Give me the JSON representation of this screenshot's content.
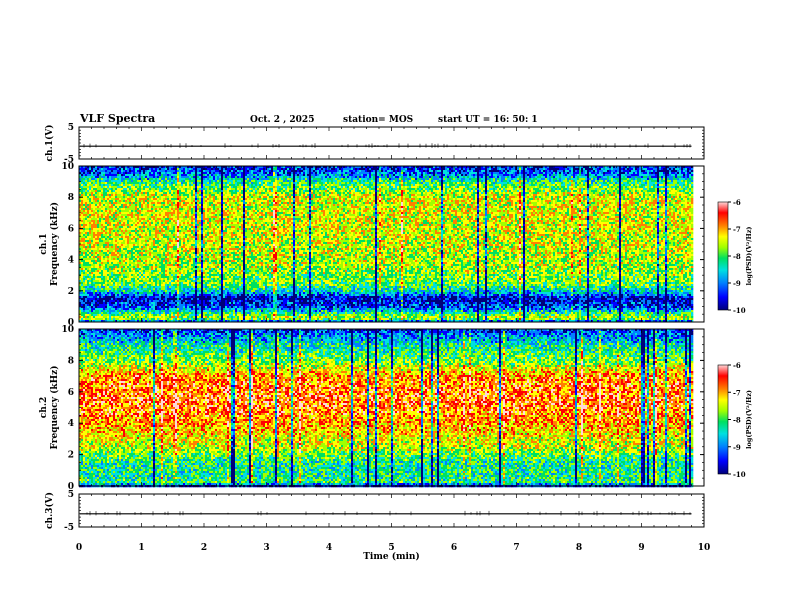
{
  "header": {
    "title": "VLF Spectra",
    "date": "Oct. 2  , 2025",
    "station": "station= MOS",
    "start": "start  UT =   16: 50: 1"
  },
  "colors": {
    "colormap": [
      "#00007a",
      "#0000ff",
      "#0080ff",
      "#00e0e0",
      "#00e060",
      "#a0ff00",
      "#ffff00",
      "#ff8000",
      "#ff0000",
      "#ffd8d8"
    ]
  },
  "chart_data": [
    {
      "type": "line",
      "name": "ch1-waveform",
      "ylabel": "ch.1(V)",
      "ylim": [
        -5,
        5
      ],
      "y_ticks": [
        "5",
        "-5"
      ],
      "xlim": [
        0,
        10
      ],
      "baseline": -1.0
    },
    {
      "type": "heatmap",
      "name": "ch1-spectrogram",
      "ylabel_lines": [
        "ch.1",
        "Frequency (kHz)"
      ],
      "ylim": [
        0,
        10
      ],
      "y_ticks": [
        "0",
        "2",
        "4",
        "6",
        "8",
        "10"
      ],
      "xlim": [
        0,
        9.8
      ],
      "colorbar": {
        "label": "log(PSD)(V²/Hz)",
        "range": [
          -10,
          -6
        ],
        "ticks": [
          "-6",
          "-7",
          "-8",
          "-9",
          "-10"
        ]
      },
      "profile_freq_khz": [
        0.0,
        0.3,
        0.6,
        1.0,
        1.6,
        2.0,
        2.5,
        3.5,
        5.0,
        6.5,
        8.0,
        9.0,
        9.5,
        10.0
      ],
      "profile_level": [
        0.05,
        0.6,
        0.45,
        0.2,
        0.1,
        0.35,
        0.5,
        0.56,
        0.6,
        0.62,
        0.62,
        0.45,
        0.25,
        0.15
      ]
    },
    {
      "type": "heatmap",
      "name": "ch2-spectrogram",
      "ylabel_lines": [
        "ch.2",
        "Frequency (kHz)"
      ],
      "ylim": [
        0,
        10
      ],
      "y_ticks": [
        "0",
        "2",
        "4",
        "6",
        "8",
        "10"
      ],
      "xlim": [
        0,
        9.8
      ],
      "colorbar": {
        "label": "log(PSD)(V²/Hz)",
        "range": [
          -10,
          -6
        ],
        "ticks": [
          "-6",
          "-7",
          "-8",
          "-9",
          "-10"
        ]
      },
      "profile_freq_khz": [
        0.0,
        0.3,
        0.8,
        1.5,
        2.0,
        2.5,
        3.0,
        4.0,
        5.5,
        7.0,
        8.0,
        9.0,
        9.5,
        10.0
      ],
      "profile_level": [
        0.1,
        0.45,
        0.42,
        0.42,
        0.48,
        0.6,
        0.62,
        0.72,
        0.8,
        0.75,
        0.52,
        0.4,
        0.3,
        0.18
      ]
    },
    {
      "type": "line",
      "name": "ch3-waveform",
      "ylabel": "ch.3(V)",
      "ylim": [
        -5,
        5
      ],
      "y_ticks": [
        "5",
        "-5"
      ],
      "xlim": [
        0,
        10
      ],
      "baseline": -1.0
    }
  ],
  "xaxis": {
    "label": "Time (min)",
    "range": [
      0,
      10
    ],
    "ticks": [
      "0",
      "1",
      "2",
      "3",
      "4",
      "5",
      "6",
      "7",
      "8",
      "9",
      "10"
    ]
  }
}
